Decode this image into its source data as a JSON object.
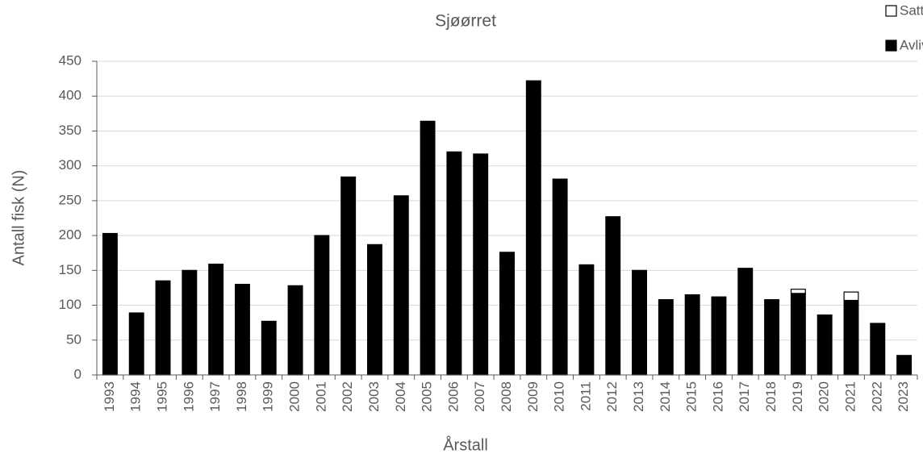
{
  "chart_data": {
    "type": "stacked_bar",
    "title": "Sjøørret",
    "x_label": "Årstall",
    "y_label": "Antall fisk (N)",
    "categories": [
      "1993",
      "1994",
      "1995",
      "1996",
      "1997",
      "1998",
      "1999",
      "2000",
      "2001",
      "2002",
      "2003",
      "2004",
      "2005",
      "2006",
      "2007",
      "2008",
      "2009",
      "2010",
      "2011",
      "2012",
      "2013",
      "2014",
      "2015",
      "2016",
      "2017",
      "2018",
      "2019",
      "2020",
      "2021",
      "2022",
      "2023"
    ],
    "series": [
      {
        "name": "Avlivet",
        "color": "#000000",
        "values": [
          203,
          89,
          135,
          150,
          159,
          130,
          77,
          128,
          200,
          284,
          187,
          257,
          364,
          320,
          317,
          176,
          422,
          281,
          158,
          227,
          150,
          108,
          115,
          112,
          153,
          108,
          117,
          86,
          107,
          73,
          28
        ]
      },
      {
        "name": "Satt ut",
        "color": "#ffffff",
        "values": [
          0,
          0,
          0,
          0,
          0,
          0,
          0,
          0,
          0,
          0,
          0,
          0,
          0,
          0,
          0,
          0,
          0,
          0,
          0,
          0,
          0,
          0,
          0,
          0,
          0,
          0,
          6,
          0,
          12,
          1,
          0
        ]
      }
    ],
    "ylim": [
      0,
      450
    ],
    "yticks": [
      0,
      50,
      100,
      150,
      200,
      250,
      300,
      350,
      400,
      450
    ],
    "grid": true
  }
}
